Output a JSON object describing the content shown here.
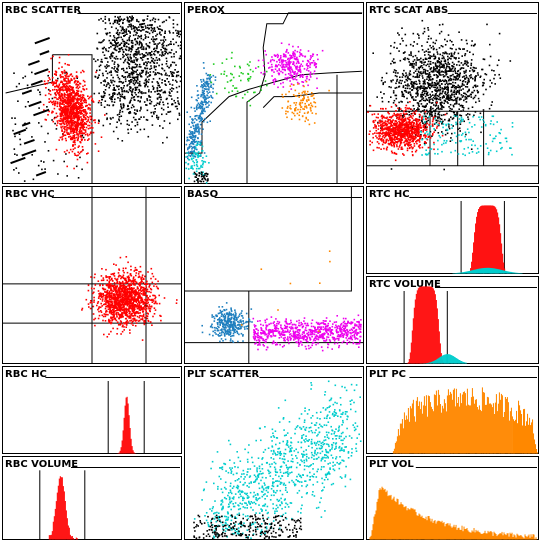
{
  "colors": {
    "red": "#ff0000",
    "black": "#000000",
    "cyan": "#00cccc",
    "blue": "#1f7fbf",
    "green": "#22cc22",
    "magenta": "#ee00ee",
    "orange": "#ff8800"
  },
  "chart_data": [
    {
      "id": "rbc-scatter",
      "type": "scatter",
      "title": "RBC SCATTER",
      "series": [
        {
          "name": "",
          "color": "red",
          "count": 1100
        },
        {
          "name": "",
          "color": "black",
          "count": 1300
        }
      ]
    },
    {
      "id": "perox",
      "type": "scatter",
      "title": "PEROX",
      "series": [
        {
          "name": "",
          "color": "blue",
          "count": 320
        },
        {
          "name": "",
          "color": "cyan",
          "count": 80
        },
        {
          "name": "",
          "color": "green",
          "count": 60
        },
        {
          "name": "",
          "color": "magenta",
          "count": 300
        },
        {
          "name": "",
          "color": "orange",
          "count": 110
        },
        {
          "name": "",
          "color": "black",
          "count": 40
        }
      ]
    },
    {
      "id": "rtc-scat-abs",
      "type": "scatter",
      "title": "RTC SCAT ABS",
      "series": [
        {
          "name": "",
          "color": "black",
          "count": 1200
        },
        {
          "name": "",
          "color": "red",
          "count": 900
        },
        {
          "name": "",
          "color": "cyan",
          "count": 140
        }
      ]
    },
    {
      "id": "rbc-vhc",
      "type": "scatter",
      "title": "RBC VHC",
      "series": [
        {
          "name": "",
          "color": "red",
          "count": 1300
        }
      ]
    },
    {
      "id": "baso",
      "type": "scatter",
      "title": "BASO",
      "series": [
        {
          "name": "",
          "color": "blue",
          "count": 320
        },
        {
          "name": "",
          "color": "magenta",
          "count": 700
        },
        {
          "name": "",
          "color": "orange",
          "count": 8
        }
      ]
    },
    {
      "id": "rtc-hc",
      "type": "histogram",
      "title": "RTC HC",
      "series": [
        {
          "name": "",
          "color": "red"
        },
        {
          "name": "",
          "color": "cyan"
        }
      ]
    },
    {
      "id": "rtc-volume",
      "type": "histogram",
      "title": "RTC VOLUME",
      "series": [
        {
          "name": "",
          "color": "red"
        },
        {
          "name": "",
          "color": "cyan"
        }
      ]
    },
    {
      "id": "rbc-hc",
      "type": "histogram",
      "title": "RBC HC",
      "series": [
        {
          "name": "",
          "color": "red"
        }
      ]
    },
    {
      "id": "plt-scatter",
      "type": "scatter",
      "title": "PLT SCATTER",
      "series": [
        {
          "name": "",
          "color": "cyan",
          "count": 1000
        },
        {
          "name": "",
          "color": "black",
          "count": 260
        }
      ]
    },
    {
      "id": "plt-pc",
      "type": "histogram",
      "title": "PLT PC",
      "series": [
        {
          "name": "",
          "color": "orange"
        }
      ]
    },
    {
      "id": "rbc-volume",
      "type": "histogram",
      "title": "RBC VOLUME",
      "series": [
        {
          "name": "",
          "color": "red"
        }
      ]
    },
    {
      "id": "plt-vol",
      "type": "histogram",
      "title": "PLT VOL",
      "series": [
        {
          "name": "",
          "color": "orange"
        }
      ]
    }
  ]
}
